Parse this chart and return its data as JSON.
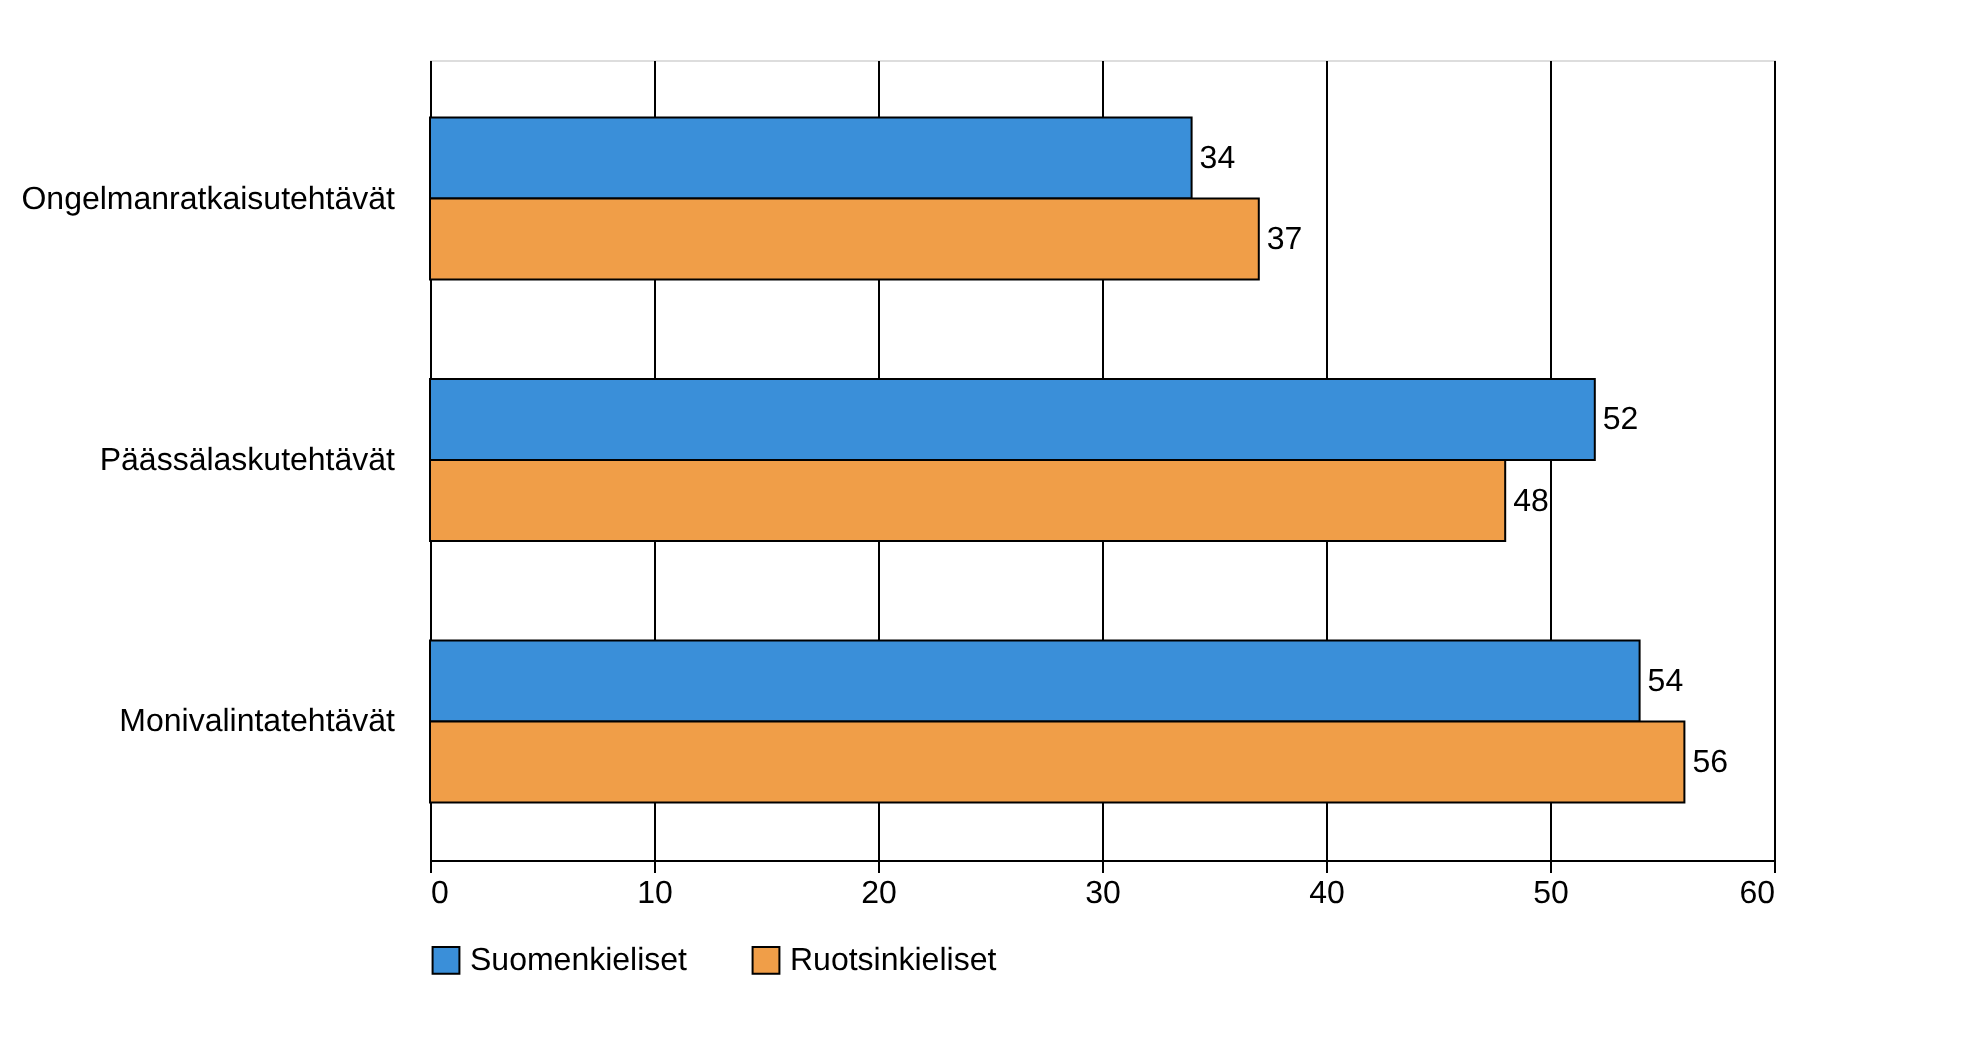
{
  "chart_data": {
    "type": "bar",
    "orientation": "horizontal",
    "categories": [
      "Ongelmanratkaisutehtävät",
      "Päässälaskutehtävät",
      "Monivalintatehtävät"
    ],
    "series": [
      {
        "name": "Suomenkieliset",
        "color": "#3a8fd9",
        "values": [
          34,
          52,
          54
        ]
      },
      {
        "name": "Ruotsinkieliset",
        "color": "#f09e48",
        "values": [
          37,
          48,
          56
        ]
      }
    ],
    "xlim": [
      0,
      60
    ],
    "xticks": [
      0,
      10,
      20,
      30,
      40,
      50,
      60
    ],
    "grid": "x",
    "legend": "bottom",
    "data_labels": true
  }
}
